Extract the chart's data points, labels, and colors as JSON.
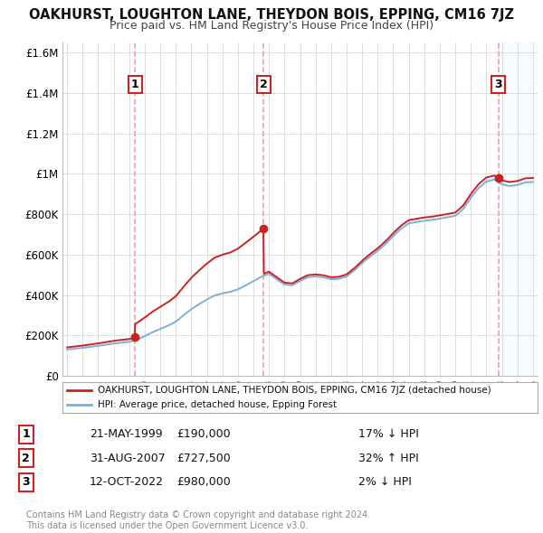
{
  "title": "OAKHURST, LOUGHTON LANE, THEYDON BOIS, EPPING, CM16 7JZ",
  "subtitle": "Price paid vs. HM Land Registry's House Price Index (HPI)",
  "ylim": [
    0,
    1650000
  ],
  "yticks": [
    0,
    200000,
    400000,
    600000,
    800000,
    1000000,
    1200000,
    1400000,
    1600000
  ],
  "ytick_labels": [
    "£0",
    "£200K",
    "£400K",
    "£600K",
    "£800K",
    "£1M",
    "£1.2M",
    "£1.4M",
    "£1.6M"
  ],
  "hpi_color": "#7eb0d5",
  "price_color": "#cc2222",
  "sale_marker_color": "#cc2222",
  "annotation_box_color": "#cc2222",
  "vline_color": "#f5a0a0",
  "shade_color": "#ddeeff",
  "legend_price_label": "OAKHURST, LOUGHTON LANE, THEYDON BOIS, EPPING, CM16 7JZ (detached house)",
  "legend_hpi_label": "HPI: Average price, detached house, Epping Forest",
  "sale1_date": 1999.38,
  "sale1_price": 190000,
  "sale1_label": "1",
  "sale1_text": "21-MAY-1999",
  "sale1_price_text": "£190,000",
  "sale1_hpi_text": "17% ↓ HPI",
  "sale2_date": 2007.66,
  "sale2_price": 727500,
  "sale2_label": "2",
  "sale2_text": "31-AUG-2007",
  "sale2_price_text": "£727,500",
  "sale2_hpi_text": "32% ↑ HPI",
  "sale3_date": 2022.79,
  "sale3_price": 980000,
  "sale3_label": "3",
  "sale3_text": "12-OCT-2022",
  "sale3_price_text": "£980,000",
  "sale3_hpi_text": "2% ↓ HPI",
  "footer_text": "Contains HM Land Registry data © Crown copyright and database right 2024.\nThis data is licensed under the Open Government Licence v3.0.",
  "background_color": "#ffffff",
  "grid_color": "#dddddd",
  "xmin": 1994.7,
  "xmax": 2025.3
}
